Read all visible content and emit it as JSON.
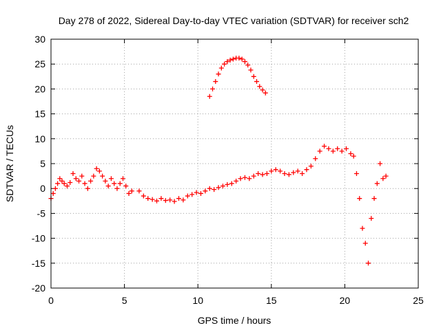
{
  "chart_data": {
    "type": "scatter",
    "title": "Day 278 of 2022, Sidereal Day-to-day VTEC variation (SDTVAR) for receiver sch2",
    "xlabel": "GPS time / hours",
    "ylabel": "SDTVAR / TECUs",
    "xlim": [
      0,
      25
    ],
    "ylim": [
      -20,
      30
    ],
    "xticks": [
      0,
      5,
      10,
      15,
      20,
      25
    ],
    "yticks": [
      -20,
      -15,
      -10,
      -5,
      0,
      5,
      10,
      15,
      20,
      25,
      30
    ],
    "grid": true,
    "marker": "+",
    "color": "#ff0000",
    "series": [
      {
        "name": "SDTVAR",
        "x": [
          0.0,
          0.15,
          0.3,
          0.45,
          0.6,
          0.75,
          0.9,
          1.1,
          1.3,
          1.5,
          1.7,
          1.9,
          2.1,
          2.3,
          2.5,
          2.7,
          2.9,
          3.1,
          3.3,
          3.5,
          3.7,
          3.9,
          4.1,
          4.3,
          4.5,
          4.7,
          4.9,
          5.1,
          5.3,
          5.5,
          6.0,
          6.3,
          6.6,
          6.9,
          7.2,
          7.5,
          7.8,
          8.1,
          8.4,
          8.7,
          9.0,
          9.3,
          9.6,
          9.9,
          10.2,
          10.5,
          10.8,
          11.1,
          11.4,
          11.7,
          12.0,
          12.3,
          12.6,
          12.9,
          13.2,
          13.5,
          13.8,
          14.1,
          14.4,
          14.7,
          15.0,
          15.3,
          15.6,
          15.9,
          16.2,
          16.5,
          16.8,
          17.1,
          17.4,
          17.7,
          18.0,
          18.3,
          18.6,
          18.9,
          19.2,
          19.5,
          19.8,
          20.1,
          20.4,
          20.6,
          20.8,
          21.0,
          21.2,
          21.4,
          21.6,
          21.8,
          22.0,
          22.2,
          22.4,
          22.6,
          22.8
        ],
        "y": [
          -2.0,
          -1.0,
          0.0,
          1.0,
          2.0,
          1.5,
          1.0,
          0.5,
          1.2,
          3.0,
          2.0,
          1.5,
          2.5,
          1.0,
          0.0,
          1.5,
          2.5,
          4.0,
          3.5,
          2.5,
          1.5,
          0.5,
          2.0,
          1.0,
          0.0,
          1.0,
          2.0,
          0.5,
          -1.0,
          -0.5,
          -0.5,
          -1.5,
          -2.0,
          -2.2,
          -2.5,
          -2.0,
          -2.4,
          -2.3,
          -2.6,
          -2.0,
          -2.3,
          -1.5,
          -1.2,
          -0.8,
          -1.0,
          -0.5,
          0.0,
          -0.2,
          0.2,
          0.5,
          0.8,
          1.0,
          1.5,
          2.0,
          2.2,
          2.0,
          2.5,
          3.0,
          2.8,
          3.0,
          3.5,
          3.8,
          3.5,
          3.0,
          2.8,
          3.2,
          3.5,
          3.0,
          3.8,
          4.5,
          6.0,
          7.5,
          8.5,
          8.0,
          7.5,
          8.0,
          7.5,
          8.0,
          7.0,
          6.5,
          3.0,
          -2.0,
          -8.0,
          -11.0,
          -15.0,
          -6.0,
          -2.0,
          1.0,
          5.0,
          2.0,
          2.5
        ]
      },
      {
        "name": "SDTVAR (upper arc)",
        "x": [
          10.8,
          11.0,
          11.2,
          11.4,
          11.6,
          11.8,
          12.0,
          12.2,
          12.4,
          12.6,
          12.8,
          13.0,
          13.2,
          13.4,
          13.6,
          13.8,
          14.0,
          14.2,
          14.4,
          14.6
        ],
        "y": [
          18.5,
          20.0,
          21.5,
          23.0,
          24.2,
          25.0,
          25.5,
          25.8,
          26.0,
          26.2,
          26.2,
          26.0,
          25.5,
          24.8,
          23.8,
          22.5,
          21.5,
          20.5,
          19.8,
          19.2
        ]
      }
    ]
  }
}
